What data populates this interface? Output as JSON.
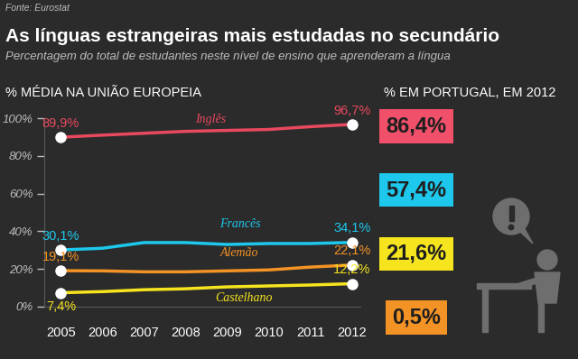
{
  "chart_data": {
    "type": "line",
    "source": "Fonte: Eurostat",
    "title": "As línguas estrangeiras mais estudadas no secundário",
    "subtitle": "Percentagem do total de estudantes neste nível de ensino que aprenderam a língua",
    "y_title": "% MÉDIA NA UNIÃO EUROPEIA",
    "x": [
      2005,
      2006,
      2007,
      2008,
      2009,
      2010,
      2011,
      2012
    ],
    "xlim": [
      2004.6,
      2012.2
    ],
    "xticks": [
      2005,
      2006,
      2007,
      2008,
      2009,
      2010,
      2011,
      2012
    ],
    "ylim": [
      0,
      100
    ],
    "yticks": [
      {
        "value": 0,
        "label": "0%"
      },
      {
        "value": 20,
        "label": "20%"
      },
      {
        "value": 40,
        "label": "40%"
      },
      {
        "value": 60,
        "label": "60%"
      },
      {
        "value": 80,
        "label": "80%"
      },
      {
        "value": 100,
        "label": "100%"
      }
    ],
    "grid": false,
    "data_labels": true,
    "series": [
      {
        "name": "Inglês",
        "color": "#e9495f",
        "marker": "o",
        "values": [
          89.9,
          91.0,
          92.0,
          93.0,
          93.5,
          94.0,
          95.5,
          96.7
        ],
        "value_labels": [
          "89,9%",
          null,
          null,
          null,
          null,
          null,
          null,
          "96,7%"
        ]
      },
      {
        "name": "Francês",
        "color": "#1ec8ec",
        "marker": "o",
        "values": [
          30.1,
          31.0,
          34.0,
          34.0,
          33.0,
          33.5,
          33.5,
          34.1
        ],
        "value_labels": [
          "30,1%",
          null,
          null,
          null,
          null,
          null,
          null,
          "34,1%"
        ]
      },
      {
        "name": "Alemão",
        "color": "#f39325",
        "marker": "o",
        "values": [
          19.1,
          19.0,
          18.5,
          18.5,
          19.0,
          19.5,
          21.0,
          22.1
        ],
        "value_labels": [
          "19,1%",
          null,
          null,
          null,
          null,
          null,
          null,
          "22,1%"
        ]
      },
      {
        "name": "Castelhano",
        "color": "#f6e51e",
        "marker": "o",
        "values": [
          7.4,
          8.0,
          9.0,
          9.5,
          10.5,
          11.0,
          11.5,
          12.2
        ],
        "value_labels": [
          "7,4%",
          null,
          null,
          null,
          null,
          null,
          null,
          "12,2%"
        ]
      }
    ],
    "portugal": {
      "title": "% EM PORTUGAL, EM 2012",
      "values": [
        86.4,
        57.4,
        21.6,
        0.5
      ],
      "value_labels": [
        "86,4%",
        "57,4%",
        "21,6%",
        "0,5%"
      ],
      "colors": [
        "#f0506a",
        "#1ec8ec",
        "#f6e51e",
        "#f39325"
      ]
    }
  }
}
